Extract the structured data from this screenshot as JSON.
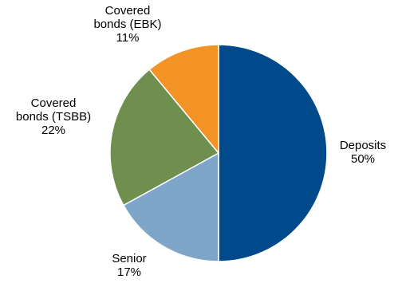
{
  "chart_data": {
    "type": "pie",
    "start": "top",
    "direction": "clockwise",
    "legend": "none",
    "slices": [
      {
        "label": [
          "Deposits"
        ],
        "value": 50,
        "value_label": "50%",
        "color": "#004A8C"
      },
      {
        "label": [
          "Senior"
        ],
        "value": 17,
        "value_label": "17%",
        "color": "#7FA6C9"
      },
      {
        "label": [
          "Covered",
          "bonds (TSBB)"
        ],
        "value": 22,
        "value_label": "22%",
        "color": "#6F8F4E"
      },
      {
        "label": [
          "Covered",
          "bonds (EBK)"
        ],
        "value": 11,
        "value_label": "11%",
        "color": "#F39325"
      }
    ]
  }
}
